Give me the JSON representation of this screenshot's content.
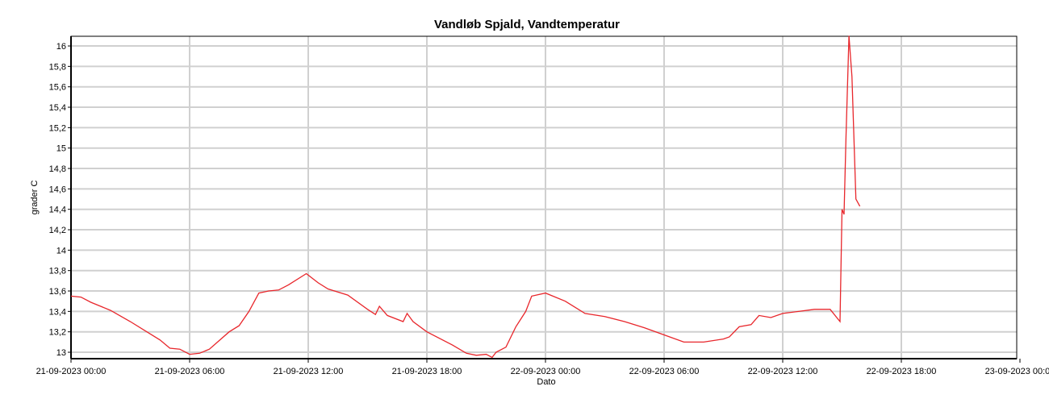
{
  "chart_data": {
    "type": "line",
    "title": "Vandløb Spjald, Vandtemperatur",
    "x_label": "Dato",
    "y_label": "grader C",
    "grid": true,
    "xlim": [
      "21-09-2023 00:00",
      "23-09-2023 00:00"
    ],
    "xticks": [
      "21-09-2023 00:00",
      "21-09-2023 06:00",
      "21-09-2023 12:00",
      "21-09-2023 18:00",
      "22-09-2023 00:00",
      "22-09-2023 06:00",
      "22-09-2023 12:00",
      "22-09-2023 18:00",
      "23-09-2023 00:00"
    ],
    "ylim": [
      12.937,
      16.095
    ],
    "yticks": [
      {
        "value": 13,
        "label": "13"
      },
      {
        "value": 13.2,
        "label": "13,2"
      },
      {
        "value": 13.4,
        "label": "13,4"
      },
      {
        "value": 13.6,
        "label": "13,6"
      },
      {
        "value": 13.8,
        "label": "13,8"
      },
      {
        "value": 14,
        "label": "14"
      },
      {
        "value": 14.2,
        "label": "14,2"
      },
      {
        "value": 14.4,
        "label": "14,4"
      },
      {
        "value": 14.6,
        "label": "14,6"
      },
      {
        "value": 14.8,
        "label": "14,8"
      },
      {
        "value": 15,
        "label": "15"
      },
      {
        "value": 15.2,
        "label": "15,2"
      },
      {
        "value": 15.4,
        "label": "15,4"
      },
      {
        "value": 15.6,
        "label": "15,6"
      },
      {
        "value": 15.8,
        "label": "15,8"
      },
      {
        "value": 16,
        "label": "16"
      }
    ],
    "x": [
      "21-09-2023 00:00",
      "21-09-2023 00:30",
      "21-09-2023 01:00",
      "21-09-2023 02:00",
      "21-09-2023 03:00",
      "21-09-2023 04:00",
      "21-09-2023 04:30",
      "21-09-2023 05:00",
      "21-09-2023 05:30",
      "21-09-2023 06:00",
      "21-09-2023 06:30",
      "21-09-2023 07:00",
      "21-09-2023 08:00",
      "21-09-2023 08:30",
      "21-09-2023 09:00",
      "21-09-2023 09:30",
      "21-09-2023 10:00",
      "21-09-2023 10:30",
      "21-09-2023 11:00",
      "21-09-2023 11:54",
      "21-09-2023 12:30",
      "21-09-2023 13:00",
      "21-09-2023 14:00",
      "21-09-2023 15:00",
      "21-09-2023 15:24",
      "21-09-2023 15:36",
      "21-09-2023 16:00",
      "21-09-2023 16:48",
      "21-09-2023 17:00",
      "21-09-2023 17:18",
      "21-09-2023 18:00",
      "21-09-2023 19:18",
      "21-09-2023 20:00",
      "21-09-2023 20:30",
      "21-09-2023 21:00",
      "21-09-2023 21:18",
      "21-09-2023 21:30",
      "21-09-2023 22:00",
      "21-09-2023 22:30",
      "21-09-2023 23:00",
      "21-09-2023 23:18",
      "22-09-2023 00:00",
      "22-09-2023 01:00",
      "22-09-2023 02:00",
      "22-09-2023 03:00",
      "22-09-2023 04:00",
      "22-09-2023 05:00",
      "22-09-2023 06:00",
      "22-09-2023 07:00",
      "22-09-2023 08:00",
      "22-09-2023 09:00",
      "22-09-2023 09:18",
      "22-09-2023 09:48",
      "22-09-2023 10:24",
      "22-09-2023 10:48",
      "22-09-2023 11:24",
      "22-09-2023 12:00",
      "22-09-2023 12:48",
      "22-09-2023 13:36",
      "22-09-2023 14:24",
      "22-09-2023 14:54",
      "22-09-2023 15:00",
      "22-09-2023 15:06",
      "22-09-2023 15:12",
      "22-09-2023 15:21",
      "22-09-2023 15:30",
      "22-09-2023 15:42",
      "22-09-2023 15:54"
    ],
    "series": [
      {
        "name": "Vandtemperatur",
        "color": "#e8262b",
        "values": [
          13.55,
          13.54,
          13.49,
          13.41,
          13.3,
          13.18,
          13.12,
          13.04,
          13.03,
          12.98,
          12.99,
          13.03,
          13.2,
          13.26,
          13.4,
          13.58,
          13.6,
          13.61,
          13.66,
          13.77,
          13.68,
          13.62,
          13.56,
          13.42,
          13.37,
          13.45,
          13.36,
          13.3,
          13.38,
          13.3,
          13.2,
          13.07,
          12.99,
          12.97,
          12.98,
          12.95,
          13.0,
          13.05,
          13.25,
          13.4,
          13.55,
          13.58,
          13.5,
          13.38,
          13.35,
          13.3,
          13.24,
          13.17,
          13.1,
          13.1,
          13.13,
          13.15,
          13.25,
          13.27,
          13.36,
          13.34,
          13.38,
          13.4,
          13.42,
          13.42,
          13.3,
          14.4,
          14.35,
          15.1,
          16.1,
          15.7,
          14.5,
          14.43
        ]
      }
    ]
  }
}
